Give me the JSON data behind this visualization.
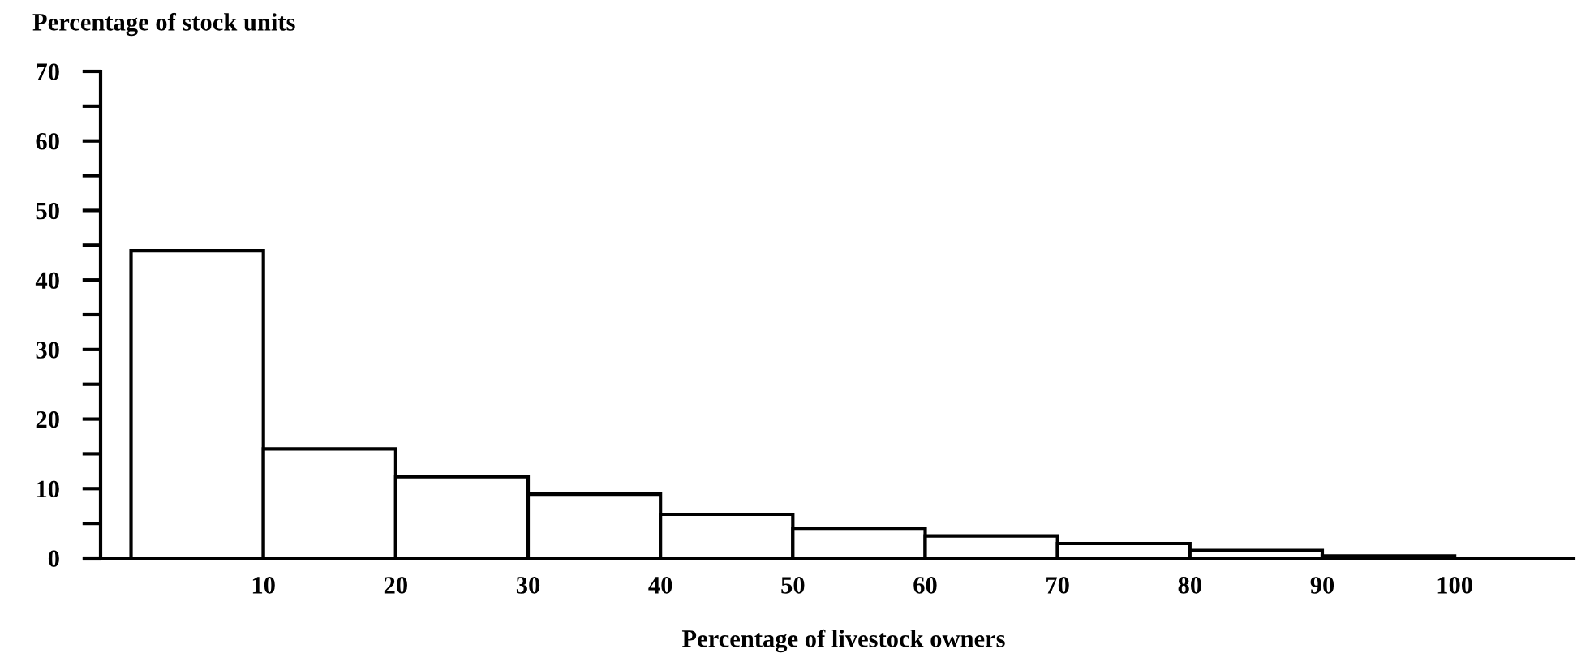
{
  "chart_data": {
    "type": "histogram",
    "xlabel": "Percentage of livestock owners",
    "ylabel": "Percentage of stock units",
    "bins": [
      0,
      10,
      20,
      30,
      40,
      50,
      60,
      70,
      80,
      90,
      100
    ],
    "values": [
      44.2,
      15.7,
      11.7,
      9.2,
      6.3,
      4.3,
      3.2,
      2.1,
      1.1,
      0.3
    ],
    "color": "#ffffff",
    "xlim": [
      -2.3,
      109
    ],
    "xticks": [
      10,
      20,
      30,
      40,
      50,
      60,
      70,
      80,
      90,
      100
    ],
    "ylim": [
      0,
      70
    ],
    "yticks": [
      0,
      {
        "value": 5,
        "label": null
      },
      10,
      {
        "value": 15,
        "label": null
      },
      20,
      {
        "value": 25,
        "label": null
      },
      30,
      {
        "value": 35,
        "label": null
      },
      40,
      {
        "value": 45,
        "label": null
      },
      50,
      {
        "value": 55,
        "label": null
      },
      60,
      {
        "value": 65,
        "label": null
      },
      70
    ],
    "grid": false,
    "legend": false
  }
}
